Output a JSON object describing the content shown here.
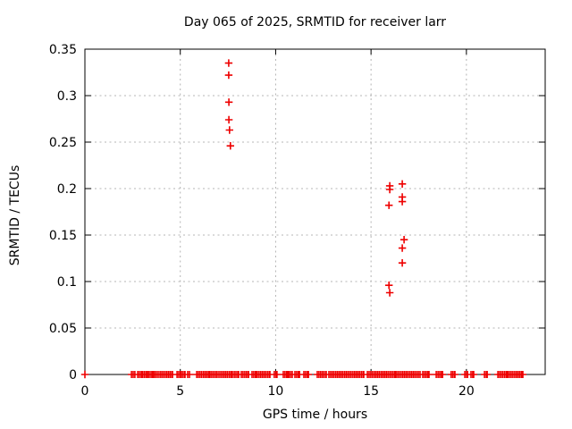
{
  "chart_data": {
    "type": "scatter",
    "title": "Day 065 of 2025, SRMTID for receiver larr",
    "xlabel": "GPS time / hours",
    "ylabel": "SRMTID / TECUs",
    "x_range": [
      0,
      24.13
    ],
    "y_range": [
      0,
      0.35
    ],
    "x_ticks": [
      0,
      5,
      10,
      15,
      20
    ],
    "y_ticks": [
      "0",
      "0.05",
      "0.1",
      "0.15",
      "0.2",
      "0.25",
      "0.3",
      "0.35"
    ],
    "grid": true,
    "legend": "none",
    "marker": "plus",
    "colors": {
      "marker": "#ee0000",
      "grid": "#b4b4b4",
      "axis": "#000000",
      "background": "#ffffff"
    },
    "points": [
      [
        0.0,
        0.0
      ],
      [
        7.54,
        0.335
      ],
      [
        7.54,
        0.322
      ],
      [
        7.55,
        0.293
      ],
      [
        7.55,
        0.274
      ],
      [
        7.58,
        0.263
      ],
      [
        7.63,
        0.246
      ],
      [
        15.94,
        0.182
      ],
      [
        15.94,
        0.096
      ],
      [
        15.98,
        0.203
      ],
      [
        15.98,
        0.199
      ],
      [
        15.98,
        0.088
      ],
      [
        16.64,
        0.205
      ],
      [
        16.64,
        0.191
      ],
      [
        16.64,
        0.186
      ],
      [
        16.64,
        0.136
      ],
      [
        16.64,
        0.12
      ],
      [
        16.73,
        0.145
      ]
    ],
    "baseline_y": 0,
    "baseline_segments": [
      [
        2.44,
        2.62
      ],
      [
        2.77,
        2.95
      ],
      [
        3.02,
        3.28
      ],
      [
        3.33,
        3.51
      ],
      [
        3.58,
        3.66
      ],
      [
        3.75,
        3.84
      ],
      [
        3.94,
        4.59
      ],
      [
        4.83,
        5.06
      ],
      [
        5.15,
        5.25
      ],
      [
        5.39,
        5.48
      ],
      [
        5.86,
        6.56
      ],
      [
        6.65,
        6.93
      ],
      [
        7.03,
        7.73
      ],
      [
        7.83,
        8.06
      ],
      [
        8.2,
        8.58
      ],
      [
        8.76,
        9.0
      ],
      [
        9.04,
        9.7
      ],
      [
        9.93,
        10.07
      ],
      [
        10.4,
        10.64
      ],
      [
        10.69,
        10.87
      ],
      [
        11.01,
        11.25
      ],
      [
        11.48,
        11.72
      ],
      [
        12.18,
        12.65
      ],
      [
        12.79,
        14.62
      ],
      [
        14.81,
        16.31
      ],
      [
        16.4,
        17.57
      ],
      [
        17.71,
        18.04
      ],
      [
        18.42,
        18.75
      ],
      [
        19.2,
        19.4
      ],
      [
        19.92,
        20.06
      ],
      [
        20.24,
        20.38
      ],
      [
        20.95,
        21.09
      ],
      [
        21.65,
        22.12
      ],
      [
        22.17,
        22.96
      ]
    ]
  }
}
